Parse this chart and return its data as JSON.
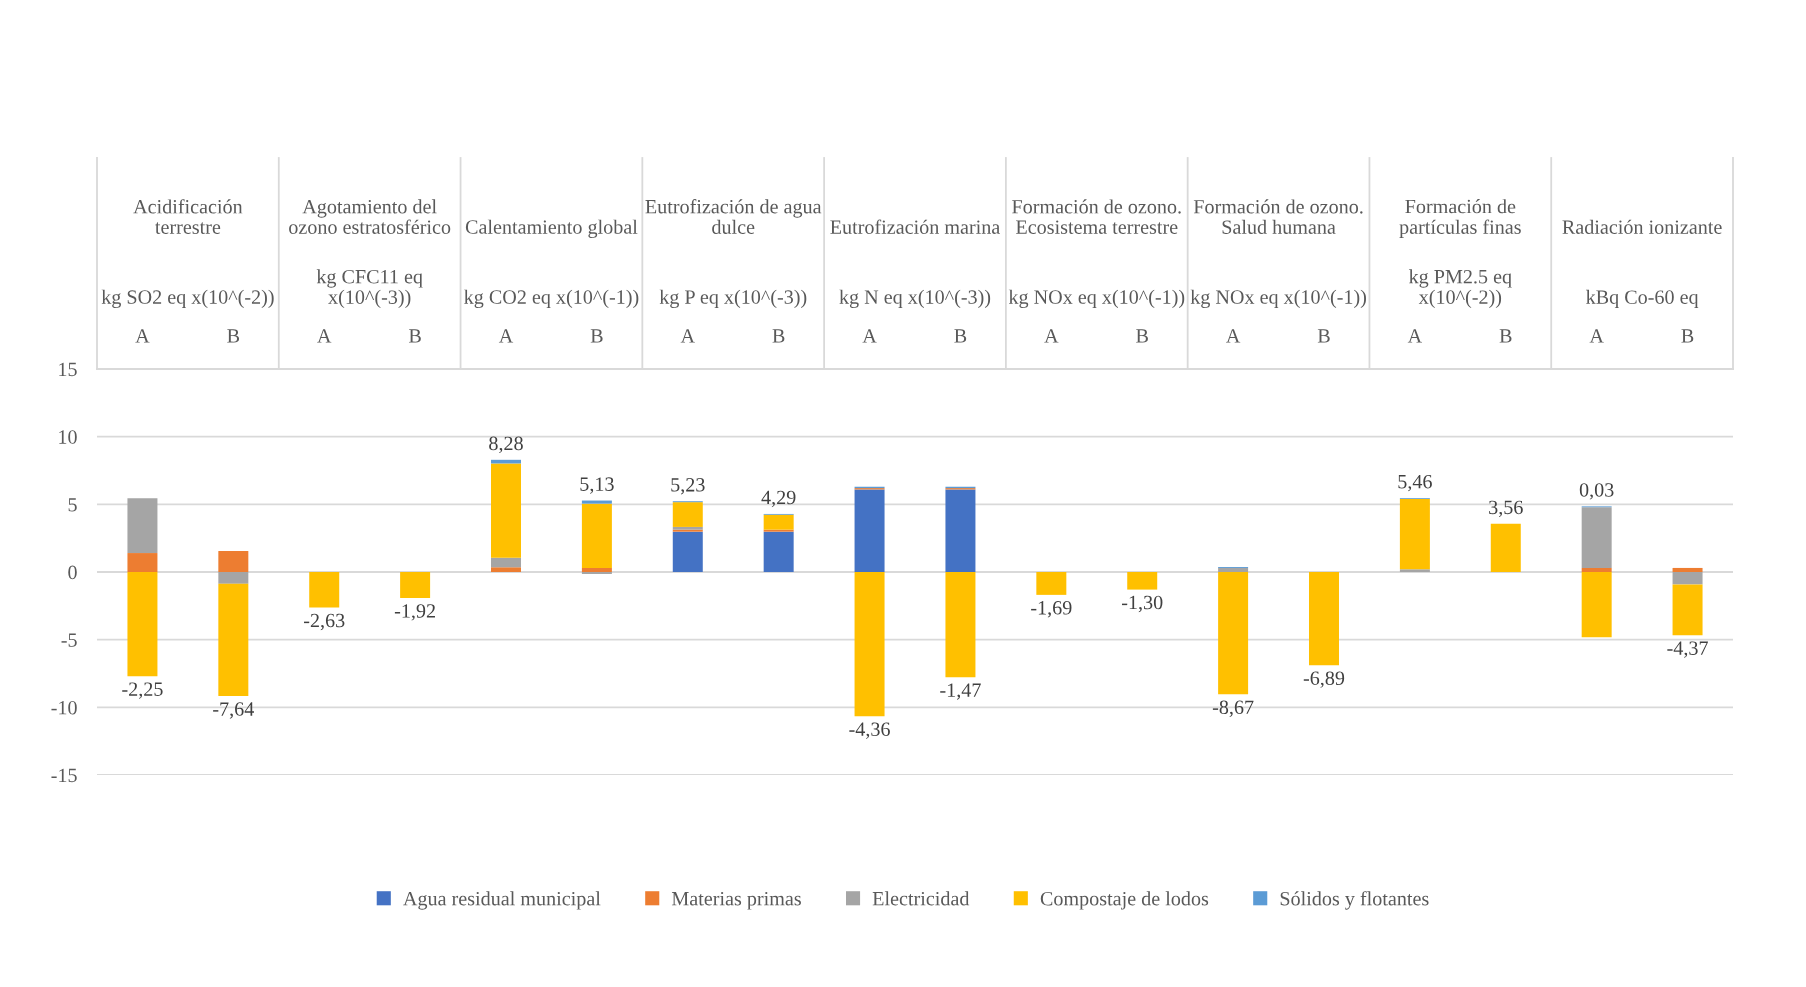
{
  "chart_data": {
    "type": "bar",
    "stacked": true,
    "categories": [
      "A",
      "B",
      "A",
      "B",
      "A",
      "B",
      "A",
      "B",
      "A",
      "B",
      "A",
      "B",
      "A",
      "B",
      "A",
      "B",
      "A",
      "B"
    ],
    "annotations": [
      "Acidificación terrestre",
      "kg SO2 eq x(10^(-2))",
      "Agotamiento del ozono estratosférico",
      "kg CFC11 eq x(10^(-3))",
      "Calentamiento global",
      "kg CO2 eq x(10^(-1))",
      "Eutrofización de agua dulce",
      "kg P eq x(10^(-3))",
      "Eutrofización marina",
      "kg N eq x(10^(-3))",
      "Formación de ozono. Ecosistema terrestre",
      "kg NOx eq x(10^(-1))",
      "Formación de ozono. Salud humana",
      "kg NOx eq x(10^(-1))",
      "Formación de partículas finas",
      "kg PM2.5 eq x(10^(-2))",
      "Radiación ionizante",
      "kBq Co-60 eq"
    ],
    "series": [
      {
        "name": "Agua residual municipal",
        "color": "#4472c4",
        "values": [
          null,
          null,
          null,
          null,
          null,
          null,
          2.98,
          2.98,
          6.1,
          6.1,
          null,
          null,
          null,
          null,
          null,
          null,
          null,
          null
        ]
      },
      {
        "name": "Materias primas",
        "color": "#ed7d31",
        "values": [
          1.4,
          1.55,
          null,
          null,
          0.35,
          0.3,
          0.15,
          0.15,
          0.1,
          0.1,
          null,
          null,
          null,
          null,
          null,
          null,
          0.3,
          0.3
        ]
      },
      {
        "name": "Electricidad",
        "color": "#a5a5a5",
        "values": [
          4.05,
          -0.87,
          null,
          null,
          0.7,
          -0.15,
          0.2,
          null,
          null,
          null,
          null,
          null,
          0.3,
          null,
          0.2,
          null,
          4.49,
          -0.92
        ]
      },
      {
        "name": "Compostaje de lodos",
        "color": "#ffc000",
        "values": [
          -7.7,
          -8.3,
          -2.63,
          -1.92,
          6.97,
          4.75,
          1.83,
          1.1,
          -10.66,
          -7.77,
          -1.69,
          -1.3,
          -9.04,
          -6.89,
          5.2,
          3.56,
          -4.82,
          -3.75
        ]
      },
      {
        "name": "Sólidos y flotantes",
        "color": "#5b9bd5",
        "values": [
          null,
          null,
          null,
          null,
          0.27,
          0.23,
          0.07,
          0.06,
          0.1,
          0.1,
          null,
          null,
          0.07,
          null,
          0.06,
          null,
          0.06,
          null
        ]
      }
    ],
    "totals": [
      "-2,25",
      "-7,64",
      "-2,63",
      "-1,92",
      "8,28",
      "5,13",
      "5,23",
      "4,29",
      "-4,36",
      "-1,47",
      "-1,69",
      "-1,30",
      "-8,67",
      "-6,89",
      "5,46",
      "3,56",
      "0,03",
      "-4,37"
    ],
    "ylim": [
      -15,
      15
    ],
    "yticks": [
      -15,
      -10,
      -5,
      0,
      5,
      10,
      15
    ],
    "grid": "y",
    "legend": "bottom"
  }
}
